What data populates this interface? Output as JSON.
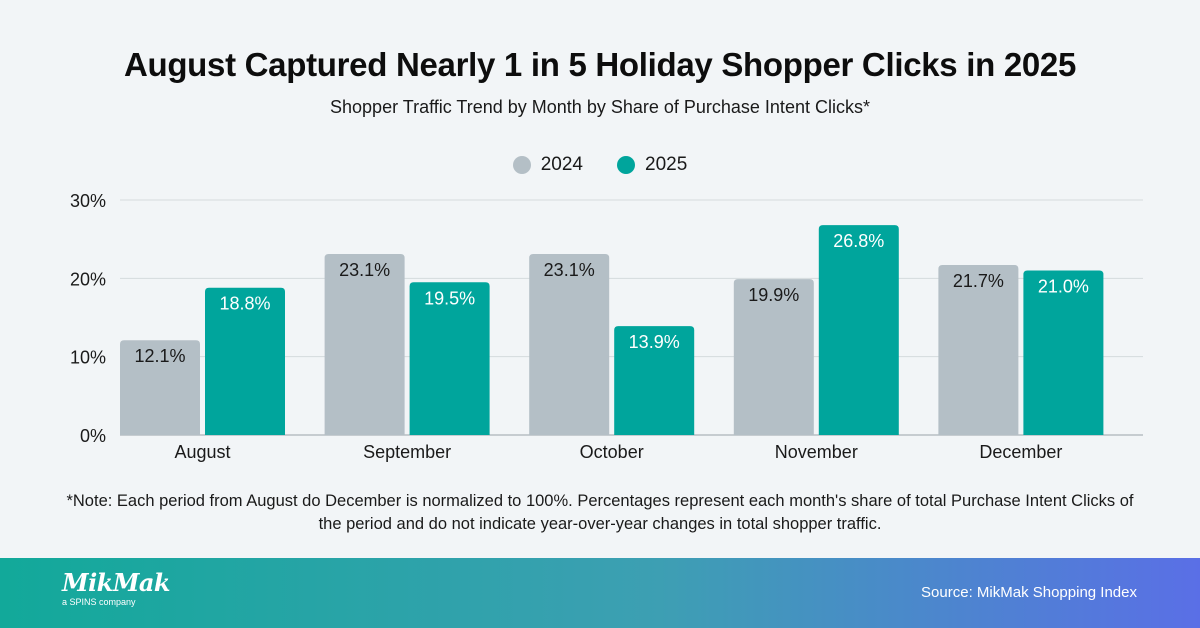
{
  "chart_data": {
    "type": "bar",
    "title": "August Captured Nearly 1 in 5 Holiday Shopper Clicks in 2025",
    "subtitle": "Shopper Traffic Trend by Month by Share of Purchase Intent Clicks*",
    "categories": [
      "August",
      "September",
      "October",
      "November",
      "December"
    ],
    "series": [
      {
        "name": "2024",
        "color": "#b4bfc6",
        "values": [
          12.1,
          23.1,
          23.1,
          19.9,
          21.7
        ],
        "labels": [
          "12.1%",
          "23.1%",
          "23.1%",
          "19.9%",
          "21.7%"
        ],
        "label_color": "#1a1a1a"
      },
      {
        "name": "2025",
        "color": "#00a59c",
        "values": [
          18.8,
          19.5,
          13.9,
          26.8,
          21.0
        ],
        "labels": [
          "18.8%",
          "19.5%",
          "13.9%",
          "26.8%",
          "21.0%"
        ],
        "label_color": "#ffffff"
      }
    ],
    "ylim": [
      0,
      30
    ],
    "yticks": [
      0,
      10,
      20,
      30
    ],
    "ytick_labels": [
      "0%",
      "10%",
      "20%",
      "30%"
    ],
    "xlabel": "",
    "ylabel": "",
    "grid": true,
    "legend": "top-center"
  },
  "note": "*Note: Each period from August do December is normalized to 100%. Percentages represent each month's share of total Purchase Intent Clicks of the period and do not indicate year-over-year changes in total shopper traffic.",
  "footer": {
    "logo": "MikMak",
    "logo_sub": "a SPINS company",
    "source": "Source: MikMak Shopping Index"
  }
}
